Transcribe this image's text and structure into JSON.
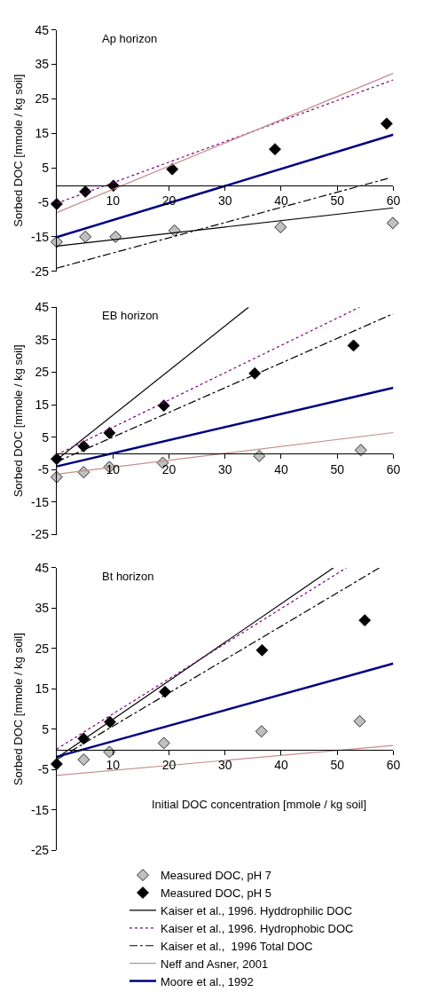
{
  "chart_data": [
    {
      "type": "line",
      "title": "Ap horizon",
      "ylabel": "Sorbed DOC [mmole / kg soil]",
      "xlim": [
        0,
        60
      ],
      "ylim": [
        -25,
        45
      ],
      "xticks": [
        10,
        20,
        30,
        40,
        50,
        60
      ],
      "yticks": [
        -25,
        -15,
        -5,
        5,
        15,
        25,
        35,
        45
      ],
      "legend": "bottom",
      "series": [
        {
          "name": "Measured DOC, pH 7",
          "type": "scatter",
          "marker": "diamond",
          "color": "#c0c0c0",
          "x": [
            0,
            5.1,
            10.5,
            21,
            39.9,
            59.9
          ],
          "values": [
            -16.5,
            -15,
            -15,
            -13.2,
            -12.2,
            -11
          ]
        },
        {
          "name": "Measured DOC, pH 5",
          "type": "scatter",
          "marker": "diamond",
          "color": "#000000",
          "x": [
            0,
            5.1,
            10.1,
            20.6,
            38.9,
            58.8
          ],
          "values": [
            -5.5,
            -1.9,
            -0.2,
            4.6,
            10.4,
            17.8
          ]
        },
        {
          "name": "Kaiser et al., 1996. Hyddrophilic DOC",
          "line_style": "solid",
          "color": "#000000",
          "x": [
            0,
            60
          ],
          "values": [
            -17.7,
            -6.6
          ]
        },
        {
          "name": "Kaiser et al., 1996. Hydrophobic DOC",
          "line_style": "dotted",
          "color": "#800080",
          "x": [
            0,
            60
          ],
          "values": [
            -5.3,
            30.5
          ]
        },
        {
          "name": "Kaiser et al.,  1996 Total DOC",
          "line_style": "dashdot",
          "color": "#000000",
          "x": [
            0,
            59
          ],
          "values": [
            -24.1,
            1.9
          ]
        },
        {
          "name": "Neff and Asner, 2001",
          "line_style": "solid",
          "color": "#c48e8c",
          "x": [
            0,
            60
          ],
          "values": [
            -8,
            32.4
          ]
        },
        {
          "name": "Moore et al., 1992",
          "line_style": "solid",
          "color": "#000080",
          "x": [
            0,
            60
          ],
          "values": [
            -15.1,
            14.6
          ]
        }
      ]
    },
    {
      "type": "line",
      "title": "EB horizon",
      "ylabel": "Sorbed DOC [mmole / kg soil]",
      "xlim": [
        0,
        60
      ],
      "ylim": [
        -25,
        45
      ],
      "xticks": [
        10,
        20,
        30,
        40,
        50,
        60
      ],
      "yticks": [
        -25,
        -15,
        -5,
        5,
        15,
        25,
        35,
        45
      ],
      "series": [
        {
          "type": "scatter",
          "marker": "diamond",
          "color": "#c0c0c0",
          "x": [
            0,
            4.8,
            9.4,
            18.9,
            36.1,
            54.2
          ],
          "values": [
            -7.3,
            -5.8,
            -4.2,
            -2.9,
            -0.8,
            1
          ]
        },
        {
          "type": "scatter",
          "marker": "diamond",
          "color": "#000000",
          "x": [
            0,
            4.8,
            9.4,
            19.1,
            35.3,
            52.9
          ],
          "values": [
            -1.7,
            2.2,
            6.3,
            14.7,
            24.6,
            33.2
          ]
        },
        {
          "line_style": "solid",
          "color": "#000000",
          "x": [
            0,
            34.2
          ],
          "values": [
            -2,
            45
          ]
        },
        {
          "line_style": "dotted",
          "color": "#800080",
          "x": [
            0,
            54
          ],
          "values": [
            -0.4,
            45
          ]
        },
        {
          "line_style": "dashdot",
          "color": "#000000",
          "x": [
            0,
            60
          ],
          "values": [
            -2.6,
            43
          ]
        },
        {
          "line_style": "solid",
          "color": "#c48e8c",
          "x": [
            0,
            60
          ],
          "values": [
            -6.4,
            6.4
          ]
        },
        {
          "line_style": "solid",
          "color": "#000080",
          "x": [
            0,
            60
          ],
          "values": [
            -4,
            20.2
          ]
        }
      ]
    },
    {
      "type": "line",
      "title": "Bt horizon",
      "xlabel": "Initial DOC concentration [mmole / kg soil]",
      "ylabel": "Sorbed DOC [mmole / kg soil]",
      "xlim": [
        0,
        60
      ],
      "ylim": [
        -25,
        45
      ],
      "xticks": [
        10,
        20,
        30,
        40,
        50,
        60
      ],
      "yticks": [
        -25,
        -15,
        -5,
        5,
        15,
        25,
        35,
        45
      ],
      "series": [
        {
          "type": "scatter",
          "marker": "diamond",
          "color": "#c0c0c0",
          "x": [
            4.8,
            9.4,
            19.1,
            36.5,
            54
          ],
          "values": [
            -2.5,
            -0.6,
            1.6,
            4.5,
            7
          ]
        },
        {
          "type": "scatter",
          "marker": "diamond",
          "color": "#000000",
          "x": [
            0,
            4.8,
            9.5,
            19.3,
            36.6,
            54.9
          ],
          "values": [
            -3.6,
            2.7,
            6.8,
            14.3,
            24.6,
            32
          ]
        },
        {
          "line_style": "solid",
          "color": "#000000",
          "x": [
            0,
            49.3
          ],
          "values": [
            -2.1,
            45
          ]
        },
        {
          "line_style": "dotted",
          "color": "#800080",
          "x": [
            0,
            51.6
          ],
          "values": [
            0.1,
            45
          ]
        },
        {
          "line_style": "dashdot",
          "color": "#000000",
          "x": [
            0,
            57.5
          ],
          "values": [
            -2.5,
            45
          ]
        },
        {
          "line_style": "solid",
          "color": "#c48e8c",
          "x": [
            0,
            60
          ],
          "values": [
            -6.4,
            1
          ]
        },
        {
          "line_style": "solid",
          "color": "#000080",
          "x": [
            0,
            60
          ],
          "values": [
            -1.8,
            21.3
          ]
        }
      ]
    }
  ]
}
